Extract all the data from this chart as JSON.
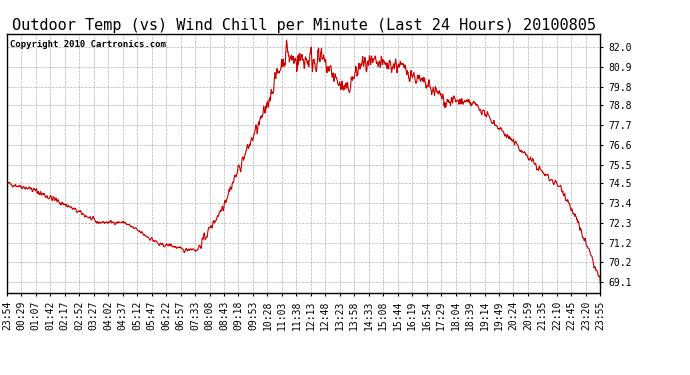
{
  "title": "Outdoor Temp (vs) Wind Chill per Minute (Last 24 Hours) 20100805",
  "copyright": "Copyright 2010 Cartronics.com",
  "line_color": "#cc0000",
  "background_color": "#ffffff",
  "grid_color": "#aaaaaa",
  "yticks": [
    69.1,
    70.2,
    71.2,
    72.3,
    73.4,
    74.5,
    75.5,
    76.6,
    77.7,
    78.8,
    79.8,
    80.9,
    82.0
  ],
  "ylim": [
    68.5,
    82.7
  ],
  "xtick_labels": [
    "23:54",
    "00:29",
    "01:07",
    "01:42",
    "02:17",
    "02:52",
    "03:27",
    "04:02",
    "04:37",
    "05:12",
    "05:47",
    "06:22",
    "06:57",
    "07:33",
    "08:08",
    "08:43",
    "09:18",
    "09:53",
    "10:28",
    "11:03",
    "11:38",
    "12:13",
    "12:48",
    "13:23",
    "13:58",
    "14:33",
    "15:08",
    "15:44",
    "16:19",
    "16:54",
    "17:29",
    "18:04",
    "18:39",
    "19:14",
    "19:49",
    "20:24",
    "20:59",
    "21:35",
    "22:10",
    "22:45",
    "23:20",
    "23:55"
  ],
  "title_fontsize": 11,
  "copyright_fontsize": 6.5,
  "tick_fontsize": 7,
  "figsize": [
    6.9,
    3.75
  ],
  "dpi": 100
}
